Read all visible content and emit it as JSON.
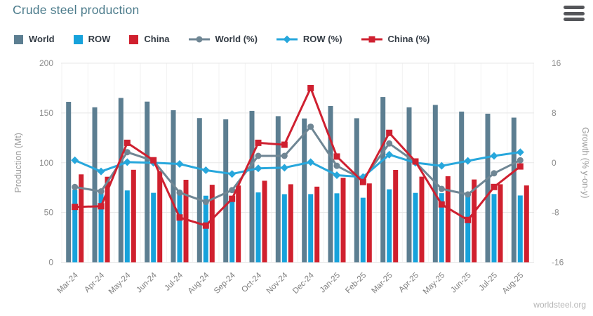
{
  "header": {
    "title": "Crude steel production"
  },
  "footer": {
    "source": "worldsteel.org"
  },
  "colors": {
    "world": "#5c7e91",
    "row": "#17a2db",
    "china": "#d0202e",
    "world_pct": "#6f8694",
    "row_pct": "#27a7dc",
    "china_pct": "#cf2030",
    "grid": "#e7e7e7",
    "grid_vertical": "#f2f2f2",
    "tick_text": "#8c8c8c",
    "axis_title_text": "#9a9a9a",
    "category_text": "#7f7f7f",
    "title_text": "#4b7b8b",
    "legend_text": "#333b44",
    "menu_icon": "#55565a"
  },
  "legend": {
    "items": [
      {
        "label": "World",
        "type": "bar",
        "marker": "square",
        "color_key": "world"
      },
      {
        "label": "ROW",
        "type": "bar",
        "marker": "square",
        "color_key": "row"
      },
      {
        "label": "China",
        "type": "bar",
        "marker": "square",
        "color_key": "china"
      },
      {
        "label": "World (%)",
        "type": "line",
        "marker": "circle",
        "color_key": "world_pct"
      },
      {
        "label": "ROW (%)",
        "type": "line",
        "marker": "diamond",
        "color_key": "row_pct"
      },
      {
        "label": "China (%)",
        "type": "line",
        "marker": "square",
        "color_key": "china_pct"
      }
    ]
  },
  "chart_data": {
    "type": "bar+line combo",
    "title": "Crude steel production",
    "categories": [
      "Mar-24",
      "Apr-24",
      "May-24",
      "Jun-24",
      "Jul-24",
      "Aug-24",
      "Sep-24",
      "Oct-24",
      "Nov-24",
      "Dec-24",
      "Jan-25",
      "Feb-25",
      "Mar-25",
      "Apr-25",
      "May-25",
      "Jun-25",
      "Jul-25",
      "Aug-25"
    ],
    "y_left": {
      "label": "Production (Mt)",
      "min": 0,
      "max": 200,
      "ticks": [
        0,
        50,
        100,
        150,
        200
      ]
    },
    "y_right": {
      "label": "Growth (% y-on-y)",
      "min": -16,
      "max": 16,
      "ticks": [
        -16,
        -8,
        0,
        8,
        16
      ]
    },
    "grid": true,
    "legend_position": "top",
    "series": [
      {
        "name": "World",
        "type": "bar",
        "axis": "left",
        "color_key": "world",
        "values": [
          161.2,
          155.7,
          165.1,
          161.4,
          152.8,
          144.8,
          143.6,
          152.1,
          146.8,
          144.5,
          157.0,
          144.7,
          166.1,
          155.7,
          158.1,
          151.4,
          149.3,
          145.3
        ]
      },
      {
        "name": "ROW",
        "type": "bar",
        "axis": "left",
        "color_key": "row",
        "values": [
          72.9,
          69.8,
          72.2,
          69.8,
          69.9,
          66.9,
          66.5,
          70.2,
          68.4,
          68.5,
          69.3,
          64.8,
          73.3,
          69.7,
          69.4,
          67.2,
          68.6,
          67.1
        ]
      },
      {
        "name": "China",
        "type": "bar",
        "axis": "left",
        "color_key": "china",
        "values": [
          88.3,
          85.9,
          92.9,
          91.6,
          82.9,
          77.9,
          77.1,
          81.9,
          78.4,
          76.0,
          84.9,
          79.2,
          92.8,
          86.0,
          86.4,
          83.2,
          78.4,
          77.2
        ]
      },
      {
        "name": "World (%)",
        "type": "line",
        "axis": "right",
        "marker": "circle",
        "color_key": "world_pct",
        "values": [
          -3.9,
          -4.6,
          1.7,
          0.3,
          -4.8,
          -6.3,
          -4.4,
          1.1,
          1.1,
          5.8,
          -0.5,
          -2.7,
          3.1,
          0.1,
          -4.2,
          -5.1,
          -1.7,
          0.4
        ]
      },
      {
        "name": "ROW (%)",
        "type": "line",
        "axis": "right",
        "marker": "diamond",
        "color_key": "row_pct",
        "values": [
          0.4,
          -1.4,
          0.1,
          0.0,
          -0.2,
          -1.2,
          -1.8,
          -0.9,
          -0.8,
          0.1,
          -2.0,
          -2.3,
          1.3,
          0.0,
          -0.5,
          0.3,
          1.1,
          1.7
        ]
      },
      {
        "name": "China (%)",
        "type": "line",
        "axis": "right",
        "marker": "square",
        "color_key": "china_pct",
        "values": [
          -7.1,
          -7.0,
          3.2,
          0.4,
          -8.8,
          -10.1,
          -5.8,
          3.2,
          2.9,
          12.0,
          1.0,
          -3.1,
          4.8,
          0.2,
          -6.7,
          -9.2,
          -3.9,
          -0.6
        ]
      }
    ]
  }
}
